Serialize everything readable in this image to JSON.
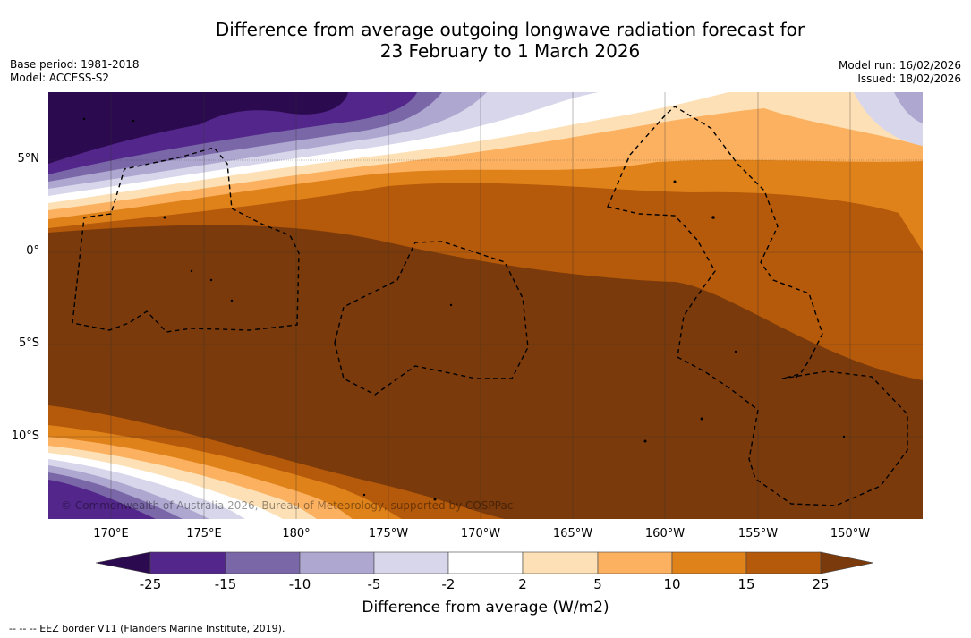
{
  "header": {
    "title_line1": "Difference from average outgoing longwave radiation forecast for",
    "title_line2": "23 February to 1 March 2026",
    "base_period": "Base period: 1981-2018",
    "model": "Model: ACCESS-S2",
    "model_run": "Model run: 16/02/2026",
    "issued": "Issued: 18/02/2026"
  },
  "map": {
    "latitude_labels": [
      "5°N",
      "0°",
      "5°S",
      "10°S"
    ],
    "longitude_labels": [
      "170°E",
      "175°E",
      "180°",
      "175°W",
      "170°W",
      "165°W",
      "160°W",
      "155°W",
      "150°W"
    ],
    "copyright": "© Commonwealth of Australia 2026, Bureau of Meteorology, supported by COSPPac"
  },
  "colorbar": {
    "tick_labels": [
      "-25",
      "-15",
      "-10",
      "-5",
      "-2",
      "2",
      "5",
      "10",
      "15",
      "25"
    ],
    "colors": [
      "#2b0a4f",
      "#53268b",
      "#7a67a8",
      "#aea7d0",
      "#d7d6eb",
      "#ffffff",
      "#fde0b5",
      "#fbb160",
      "#e0821a",
      "#b5590a",
      "#7a3a0b"
    ],
    "unit_label": "Difference from average (W/m2)"
  },
  "legend": {
    "eez_line_label": "--  --  -- EEZ border V11 (Flanders Marine Institute, 2019)."
  }
}
